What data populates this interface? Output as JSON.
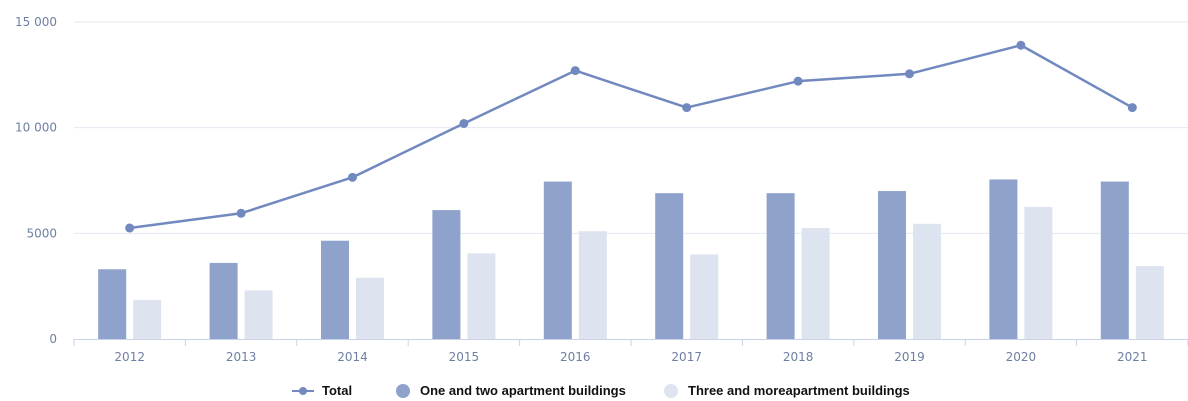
{
  "chart_data": {
    "type": "bar",
    "categories": [
      "2012",
      "2013",
      "2014",
      "2015",
      "2016",
      "2017",
      "2018",
      "2019",
      "2020",
      "2021"
    ],
    "ylim": [
      0,
      15000
    ],
    "yticks": [
      0,
      5000,
      10000,
      15000
    ],
    "ytick_labels": [
      "0",
      "5000",
      "10 000",
      "15 000"
    ],
    "grid": true,
    "legend_position": "bottom",
    "series": [
      {
        "name": "One and two apartment buildings",
        "type": "bar",
        "color": "#8ea2cb",
        "values": [
          3300,
          3600,
          4650,
          6100,
          7450,
          6900,
          6900,
          7000,
          7550,
          7450
        ]
      },
      {
        "name": "Three and moreapartment buildings",
        "type": "bar",
        "color": "#dde3ef",
        "values": [
          1850,
          2300,
          2900,
          4050,
          5100,
          4000,
          5250,
          5450,
          6250,
          3450
        ]
      },
      {
        "name": "Total",
        "type": "line",
        "color": "#7289bf",
        "values": [
          5250,
          5950,
          7650,
          10200,
          12700,
          10950,
          12200,
          12550,
          13900,
          10950
        ]
      }
    ]
  }
}
